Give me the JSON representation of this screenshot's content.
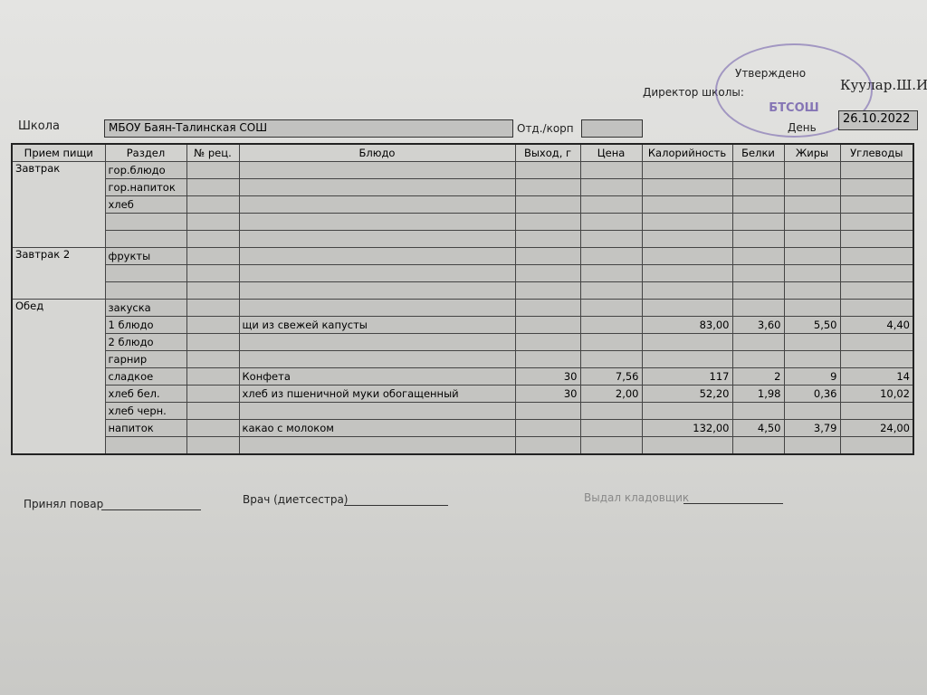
{
  "header": {
    "approved": "Утверждено",
    "director_label": "Директор школы:",
    "director_name": "Куулар.Ш.И",
    "stamp": "БТСОШ",
    "school_label": "Школа",
    "school": "МБОУ Баян-Талинская СОШ",
    "branch_label": "Отд./корп",
    "day_label": "День",
    "date": "26.10.2022"
  },
  "table": {
    "columns": [
      "Прием пищи",
      "Раздел",
      "№ рец.",
      "Блюдо",
      "Выход, г",
      "Цена",
      "Калорийность",
      "Белки",
      "Жиры",
      "Углеводы"
    ],
    "rows": [
      [
        "Завтрак",
        "гор.блюдо",
        null,
        null,
        null,
        null,
        null,
        null,
        null,
        null
      ],
      [
        null,
        "гор.напиток",
        null,
        null,
        null,
        null,
        null,
        null,
        null,
        null
      ],
      [
        null,
        "хлеб",
        null,
        null,
        null,
        null,
        null,
        null,
        null,
        null
      ],
      [
        null,
        null,
        null,
        null,
        null,
        null,
        null,
        null,
        null,
        null
      ],
      [
        null,
        null,
        null,
        null,
        null,
        null,
        null,
        null,
        null,
        null
      ],
      [
        "Завтрак 2",
        "фрукты",
        null,
        null,
        null,
        null,
        null,
        null,
        null,
        null
      ],
      [
        null,
        null,
        null,
        null,
        null,
        null,
        null,
        null,
        null,
        null
      ],
      [
        null,
        null,
        null,
        null,
        null,
        null,
        null,
        null,
        null,
        null
      ],
      [
        "Обед",
        "закуска",
        null,
        null,
        null,
        null,
        null,
        null,
        null,
        null
      ],
      [
        null,
        "1 блюдо",
        null,
        "щи из свежей капусты",
        null,
        null,
        "83,00",
        "3,60",
        "5,50",
        "4,40"
      ],
      [
        null,
        "2 блюдо",
        null,
        null,
        null,
        null,
        null,
        null,
        null,
        null
      ],
      [
        null,
        "гарнир",
        null,
        null,
        null,
        null,
        null,
        null,
        null,
        null
      ],
      [
        null,
        "сладкое",
        null,
        "Конфета",
        "30",
        "7,56",
        "117",
        "2",
        "9",
        "14"
      ],
      [
        null,
        "хлеб бел.",
        null,
        "хлеб из пшеничной муки обогащенный",
        "30",
        "2,00",
        "52,20",
        "1,98",
        "0,36",
        "10,02"
      ],
      [
        null,
        "хлеб черн.",
        null,
        null,
        null,
        null,
        null,
        null,
        null,
        null
      ],
      [
        null,
        "напиток",
        null,
        "какао с молоком",
        null,
        null,
        "132,00",
        "4,50",
        "3,79",
        "24,00"
      ],
      [
        null,
        null,
        null,
        null,
        null,
        null,
        null,
        null,
        null,
        null
      ]
    ]
  },
  "footer": {
    "cook": "Принял повар",
    "doctor": "Врач (диетсестра)",
    "storekeeper": "Выдал кладовщик"
  }
}
